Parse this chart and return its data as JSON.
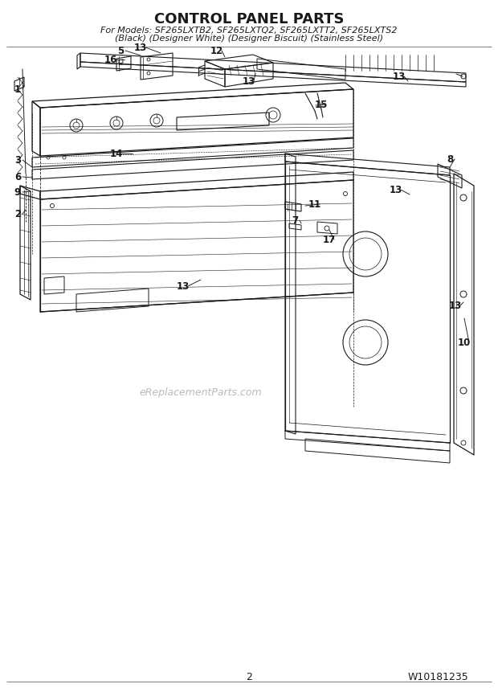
{
  "title": "CONTROL PANEL PARTS",
  "subtitle1": "For Models: SF265LXTB2, SF265LXTQ2, SF265LXTT2, SF265LXTS2",
  "subtitle2": "(Black) (Designer White) (Designer Biscuit) (Stainless Steel)",
  "page_number": "2",
  "part_number": "W10181235",
  "watermark": "eReplacementParts.com",
  "bg_color": "#ffffff",
  "lc": "#1a1a1a",
  "fig_width": 6.2,
  "fig_height": 8.56,
  "dpi": 100
}
